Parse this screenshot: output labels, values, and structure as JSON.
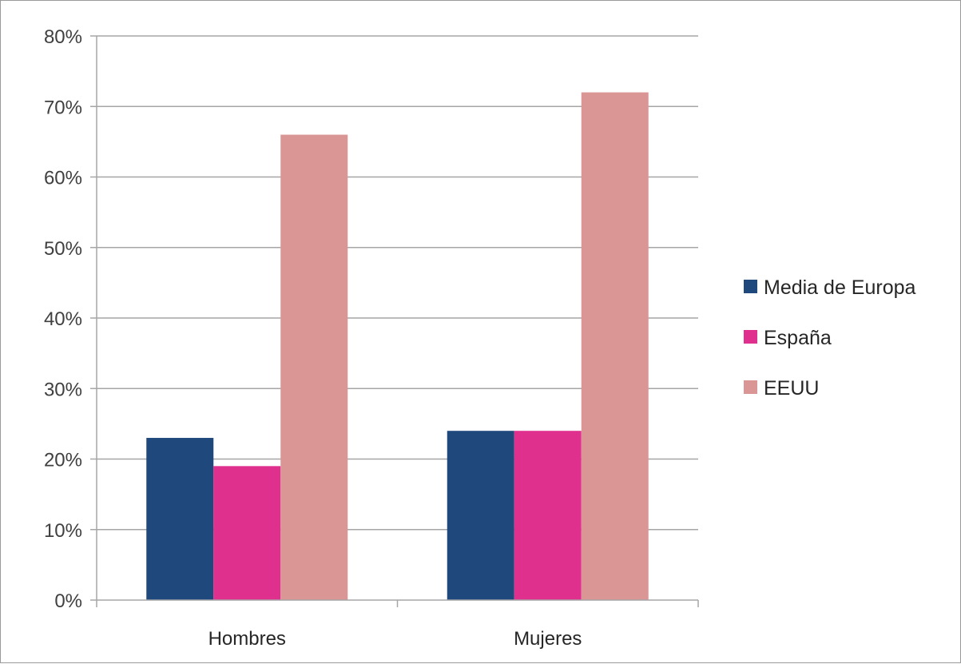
{
  "chart_data": {
    "type": "bar",
    "categories": [
      "Hombres",
      "Mujeres"
    ],
    "series": [
      {
        "name": "Media de Europa",
        "values": [
          23,
          24
        ],
        "color": "#1f487c"
      },
      {
        "name": "España",
        "values": [
          19,
          24
        ],
        "color": "#e0308e"
      },
      {
        "name": "EEUU",
        "values": [
          66,
          72
        ],
        "color": "#d99694"
      }
    ],
    "ylim": [
      0,
      80
    ],
    "yticks": [
      0,
      10,
      20,
      30,
      40,
      50,
      60,
      70,
      80
    ],
    "ytick_labels": [
      "0%",
      "10%",
      "20%",
      "30%",
      "40%",
      "50%",
      "60%",
      "70%",
      "80%"
    ],
    "grid": true,
    "legend_position": "right",
    "gridline_color": "#a6a6a6"
  }
}
